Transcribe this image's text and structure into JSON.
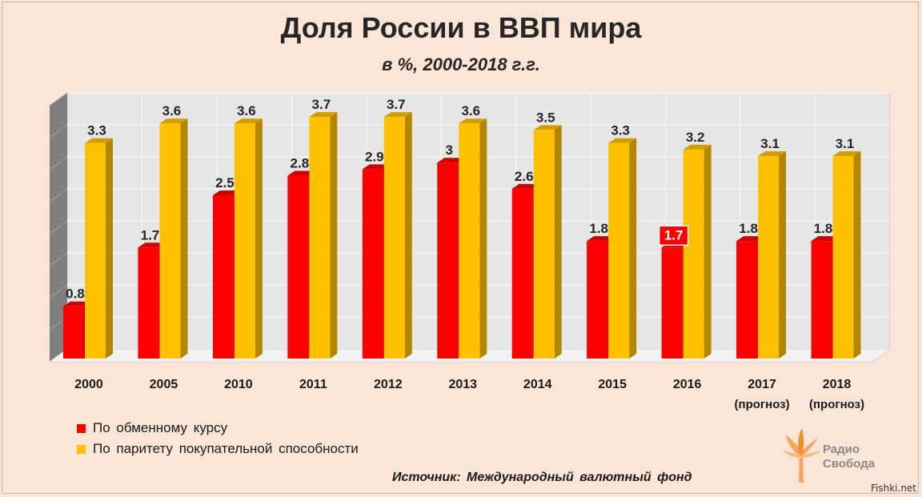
{
  "title": "Доля России в ВВП мира",
  "subtitle": "в %, 2000-2018 г.г.",
  "chart_data": {
    "type": "bar",
    "categories": [
      "2000",
      "2005",
      "2010",
      "2011",
      "2012",
      "2013",
      "2014",
      "2015",
      "2016",
      "2017",
      "2018"
    ],
    "category_notes": [
      "",
      "",
      "",
      "",
      "",
      "",
      "",
      "",
      "",
      "(прогноз)",
      "(прогноз)"
    ],
    "series": [
      {
        "name": "По обменному курсу",
        "color": "#ff0000",
        "values": [
          0.8,
          1.7,
          2.5,
          2.8,
          2.9,
          3,
          2.6,
          1.8,
          1.7,
          1.8,
          1.8
        ]
      },
      {
        "name": "По паритету покупательной способности",
        "color": "#ffc000",
        "values": [
          3.3,
          3.6,
          3.6,
          3.7,
          3.7,
          3.6,
          3.5,
          3.3,
          3.2,
          3.1,
          3.1
        ]
      }
    ],
    "ylim": [
      0,
      4
    ],
    "grid": true,
    "legend": "bottom-left",
    "highlighted_label": {
      "series": 0,
      "index": 8
    }
  },
  "legend": [
    {
      "label": "По обменному курсу",
      "color": "#ff0000"
    },
    {
      "label": "По паритету покупательной способности",
      "color": "#ffc000"
    }
  ],
  "source": "Источник:  Международный валютный фонд",
  "logo": {
    "line1": "Радио",
    "line2": "Свобода",
    "icon": "flame-icon"
  },
  "watermark": "Fishki.net"
}
